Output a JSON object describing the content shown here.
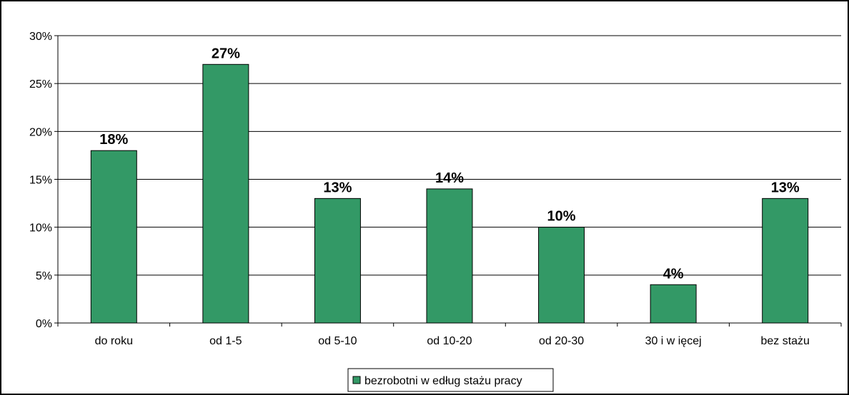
{
  "chart_data": {
    "type": "bar",
    "categories": [
      "do roku",
      "od 1-5",
      "od 5-10",
      "od 10-20",
      "od 20-30",
      "30 i w ięcej",
      "bez stażu"
    ],
    "series": [
      {
        "name": "bezrobotni w edług stażu pracy",
        "values": [
          18,
          27,
          13,
          14,
          10,
          4,
          13
        ],
        "color": "#339966"
      }
    ],
    "data_labels": [
      "18%",
      "27%",
      "13%",
      "14%",
      "10%",
      "4%",
      "13%"
    ],
    "y_ticks": [
      "0%",
      "5%",
      "10%",
      "15%",
      "20%",
      "25%",
      "30%"
    ],
    "ylim": [
      0,
      30
    ],
    "y_unit": "%",
    "grid": true,
    "legend_position": "bottom"
  }
}
